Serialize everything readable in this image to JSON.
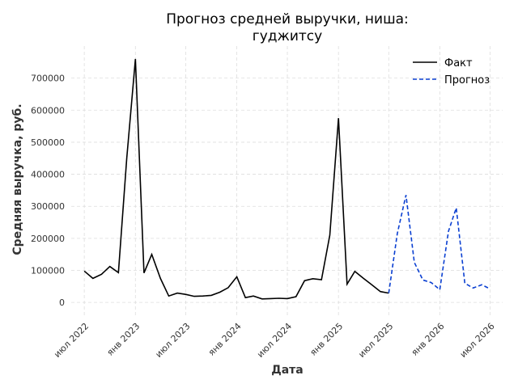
{
  "chart_data": {
    "type": "line",
    "title": "Прогноз средней выручки, ниша:\nгуджитсу",
    "xlabel": "Дата",
    "ylabel": "Средняя выручка, руб.",
    "ylim": [
      -40000,
      800000
    ],
    "y_ticks": [
      0,
      100000,
      200000,
      300000,
      400000,
      500000,
      600000,
      700000
    ],
    "x_ticks": [
      {
        "label": "июл 2022",
        "date": "2022-07-01"
      },
      {
        "label": "янв 2023",
        "date": "2023-01-01"
      },
      {
        "label": "июл 2023",
        "date": "2023-07-01"
      },
      {
        "label": "янв 2024",
        "date": "2024-01-01"
      },
      {
        "label": "июл 2024",
        "date": "2024-07-01"
      },
      {
        "label": "янв 2025",
        "date": "2025-01-01"
      },
      {
        "label": "июл 2025",
        "date": "2025-07-01"
      },
      {
        "label": "янв 2026",
        "date": "2026-01-01"
      },
      {
        "label": "июл 2026",
        "date": "2026-07-01"
      }
    ],
    "grid": true,
    "legend_position": "top-right",
    "series": [
      {
        "name": "Факт",
        "color": "#000000",
        "style": "solid",
        "points": [
          [
            "2022-07-01",
            98000
          ],
          [
            "2022-08-01",
            75000
          ],
          [
            "2022-09-01",
            88000
          ],
          [
            "2022-10-01",
            112000
          ],
          [
            "2022-11-01",
            93000
          ],
          [
            "2022-12-01",
            450000
          ],
          [
            "2023-01-01",
            760000
          ],
          [
            "2023-02-01",
            92000
          ],
          [
            "2023-03-01",
            150000
          ],
          [
            "2023-04-01",
            75000
          ],
          [
            "2023-05-01",
            20000
          ],
          [
            "2023-06-01",
            29000
          ],
          [
            "2023-07-01",
            25000
          ],
          [
            "2023-08-01",
            19000
          ],
          [
            "2023-09-01",
            20000
          ],
          [
            "2023-10-01",
            22000
          ],
          [
            "2023-11-01",
            32000
          ],
          [
            "2023-12-01",
            46000
          ],
          [
            "2024-01-01",
            80000
          ],
          [
            "2024-02-01",
            15000
          ],
          [
            "2024-03-01",
            20000
          ],
          [
            "2024-04-01",
            11000
          ],
          [
            "2024-05-01",
            12000
          ],
          [
            "2024-06-01",
            13000
          ],
          [
            "2024-07-01",
            12000
          ],
          [
            "2024-08-01",
            18000
          ],
          [
            "2024-09-01",
            68000
          ],
          [
            "2024-10-01",
            74000
          ],
          [
            "2024-11-01",
            71000
          ],
          [
            "2024-12-01",
            210000
          ],
          [
            "2025-01-01",
            575000
          ],
          [
            "2025-02-01",
            57000
          ],
          [
            "2025-03-01",
            97000
          ],
          [
            "2025-04-01",
            75000
          ],
          [
            "2025-05-01",
            55000
          ],
          [
            "2025-06-01",
            34000
          ],
          [
            "2025-07-01",
            29000
          ]
        ]
      },
      {
        "name": "Прогноз",
        "color": "#0a3fd1",
        "style": "dashed",
        "points": [
          [
            "2025-07-01",
            29000
          ],
          [
            "2025-08-01",
            215000
          ],
          [
            "2025-09-01",
            335000
          ],
          [
            "2025-10-01",
            125000
          ],
          [
            "2025-11-01",
            70000
          ],
          [
            "2025-12-01",
            62000
          ],
          [
            "2026-01-01",
            40000
          ],
          [
            "2026-02-01",
            222000
          ],
          [
            "2026-03-01",
            295000
          ],
          [
            "2026-04-01",
            60000
          ],
          [
            "2026-05-01",
            45000
          ],
          [
            "2026-06-01",
            55000
          ],
          [
            "2026-07-01",
            42000
          ]
        ]
      }
    ]
  }
}
